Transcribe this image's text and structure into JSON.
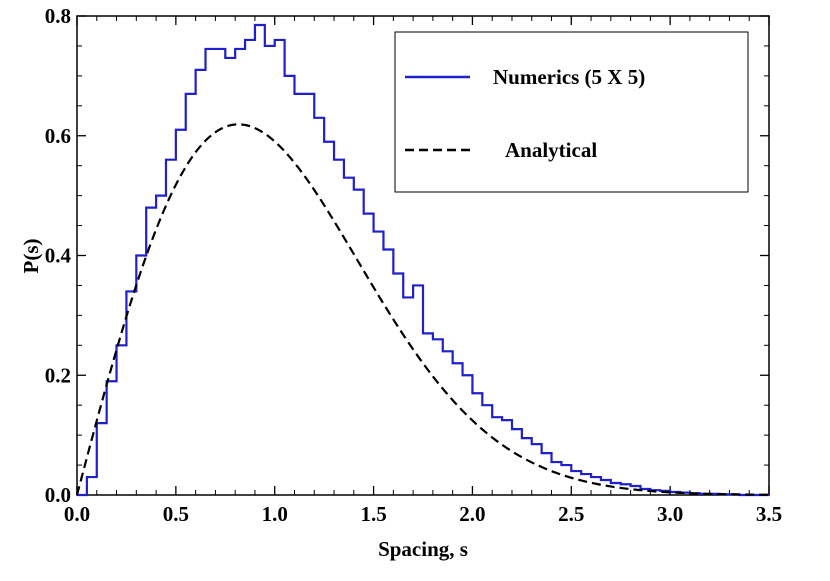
{
  "chart_data": {
    "type": "line",
    "xlabel": "Spacing, s",
    "ylabel": "P(s)",
    "xlim": [
      0,
      3.5
    ],
    "ylim": [
      0,
      0.8
    ],
    "xticks": [
      "0.0",
      "0.5",
      "1.0",
      "1.5",
      "2.0",
      "2.5",
      "3.0",
      "3.5"
    ],
    "yticks": [
      "0.0",
      "0.2",
      "0.4",
      "0.6",
      "0.8"
    ],
    "grid": false,
    "legend_position": "top-right",
    "series": [
      {
        "name": "Numerics (5 X 5)",
        "style": "step",
        "color": "#1f1fcc",
        "bin_width": 0.05,
        "x_start": 0.0,
        "values": [
          0.0,
          0.03,
          0.12,
          0.19,
          0.25,
          0.34,
          0.4,
          0.48,
          0.5,
          0.56,
          0.61,
          0.67,
          0.71,
          0.745,
          0.745,
          0.73,
          0.745,
          0.76,
          0.785,
          0.75,
          0.76,
          0.7,
          0.67,
          0.67,
          0.63,
          0.59,
          0.56,
          0.53,
          0.51,
          0.47,
          0.44,
          0.41,
          0.37,
          0.33,
          0.35,
          0.27,
          0.26,
          0.24,
          0.22,
          0.2,
          0.17,
          0.15,
          0.13,
          0.125,
          0.11,
          0.095,
          0.085,
          0.07,
          0.055,
          0.05,
          0.04,
          0.035,
          0.03,
          0.025,
          0.02,
          0.018,
          0.015,
          0.01,
          0.008,
          0.007,
          0.005,
          0.004,
          0.003,
          0.002,
          0.002,
          0.001,
          0.001,
          0.0,
          0.0,
          0.0
        ]
      },
      {
        "name": "Analytical",
        "style": "dashed",
        "color": "#000000",
        "formula_scale": 1.25,
        "formula_exp": 0.75
      }
    ]
  }
}
